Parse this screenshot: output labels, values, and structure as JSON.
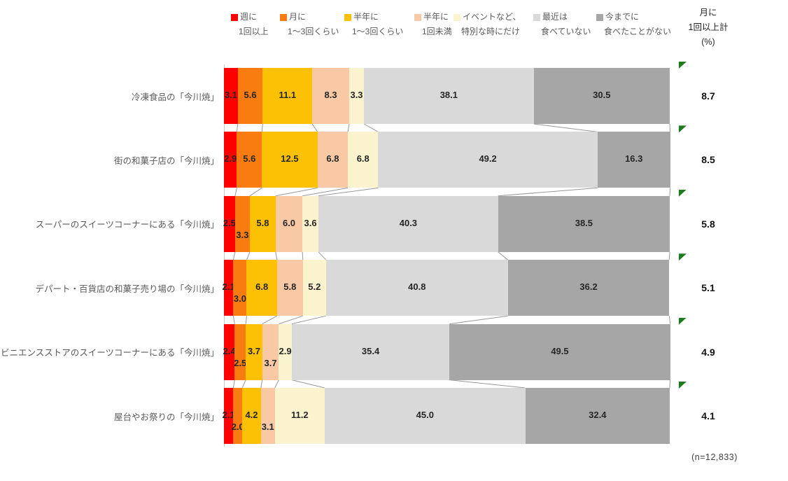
{
  "chart_data": {
    "type": "bar",
    "orientation": "horizontal",
    "stacked": true,
    "unit": "%",
    "x_range": [
      0,
      100
    ],
    "grid": false,
    "categories": [
      "冷凍食品の「今川焼」",
      "街の和菓子店の「今川焼」",
      "スーパーのスイーツコーナーにある「今川焼」",
      "デパート・百貨店の和菓子売り場の「今川焼」",
      "コンビニエンスストアのスイーツコーナーにある「今川焼」",
      "屋台やお祭りの「今川焼」"
    ],
    "series": [
      {
        "name": "週に1回以上",
        "label_line1": "週に",
        "label_line2": "1回以上",
        "color": "#FF0000",
        "values": [
          3.1,
          2.9,
          2.5,
          2.1,
          2.4,
          2.1
        ]
      },
      {
        "name": "月に1〜3回くらい",
        "label_line1": "月に",
        "label_line2": "1〜3回くらい",
        "color": "#F87C10",
        "values": [
          5.6,
          5.6,
          3.3,
          3.0,
          2.5,
          2.0
        ]
      },
      {
        "name": "半年に1〜3回くらい",
        "label_line1": "半年に",
        "label_line2": "1〜3回くらい",
        "color": "#FCC004",
        "values": [
          11.1,
          12.5,
          5.8,
          6.8,
          3.7,
          4.2
        ]
      },
      {
        "name": "半年に1回未満",
        "label_line1": "半年に",
        "label_line2": "1回未満",
        "color": "#F8C9A4",
        "values": [
          8.3,
          6.8,
          6.0,
          5.8,
          3.7,
          3.1
        ]
      },
      {
        "name": "イベントなど、特別な時にだけ",
        "label_line1": "イベントなど、",
        "label_line2": "特別な時にだけ",
        "color": "#FAF3CE",
        "values": [
          3.3,
          6.8,
          3.6,
          5.2,
          2.9,
          11.2
        ]
      },
      {
        "name": "最近は食べていない",
        "label_line1": "最近は",
        "label_line2": "食べていない",
        "color": "#D9D9D9",
        "values": [
          38.1,
          49.2,
          40.3,
          40.8,
          35.4,
          45.0
        ]
      },
      {
        "name": "今までに食べたことがない",
        "label_line1": "今までに",
        "label_line2": "食べたことがない",
        "color": "#A6A6A6",
        "values": [
          30.5,
          16.3,
          38.5,
          36.2,
          49.5,
          32.4
        ]
      }
    ],
    "summary": {
      "header_lines": [
        "月に",
        "1回以上計",
        "(%)"
      ],
      "values": [
        8.7,
        8.5,
        5.8,
        5.1,
        4.9,
        4.1
      ],
      "marker_color": "#1E7B1E"
    }
  },
  "footnote": "(n=12,833)"
}
